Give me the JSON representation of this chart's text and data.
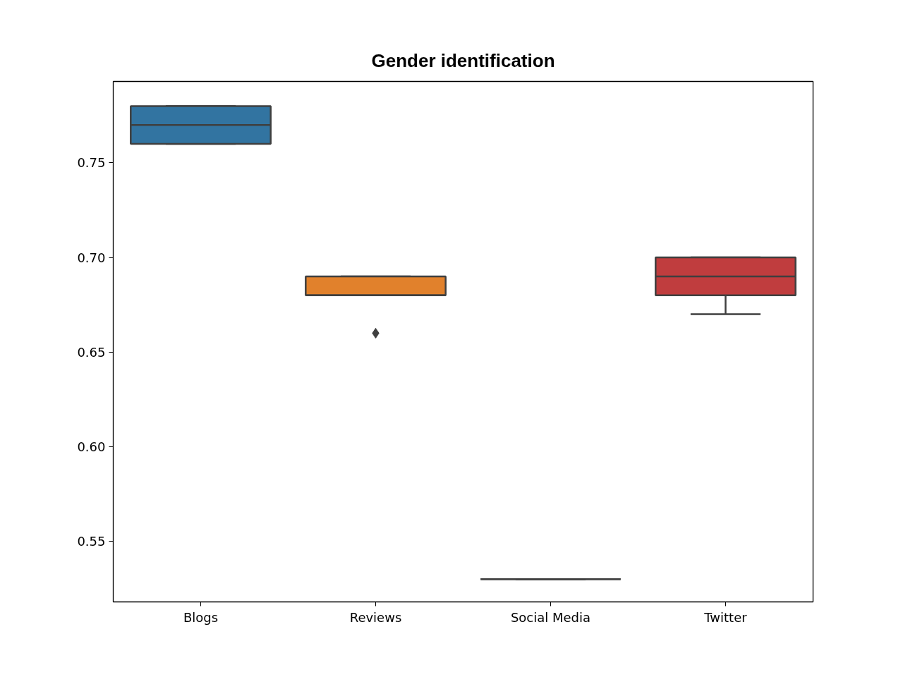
{
  "chart_data": {
    "type": "box",
    "title": "Gender identification",
    "categories": [
      "Blogs",
      "Reviews",
      "Social Media",
      "Twitter"
    ],
    "colors": [
      "#3274a1",
      "#e1812c",
      null,
      "#c03d3e"
    ],
    "boxes": [
      {
        "low": 0.76,
        "q1": 0.76,
        "median": 0.77,
        "q3": 0.78,
        "high": 0.78
      },
      {
        "low": 0.68,
        "q1": 0.68,
        "median": 0.68,
        "q3": 0.69,
        "high": 0.69,
        "outliers": [
          0.66
        ]
      },
      {
        "low": 0.53,
        "q1": 0.53,
        "median": 0.53,
        "q3": 0.53,
        "high": 0.53
      },
      {
        "low": 0.67,
        "q1": 0.68,
        "median": 0.69,
        "q3": 0.7,
        "high": 0.7
      }
    ],
    "marker": "diamond",
    "ylim": [
      0.518,
      0.793
    ],
    "yticks": [
      0.55,
      {
        "value": 0.6,
        "label": "0.60"
      },
      0.65,
      {
        "value": 0.7,
        "label": "0.70"
      },
      0.75
    ],
    "grid": false
  }
}
